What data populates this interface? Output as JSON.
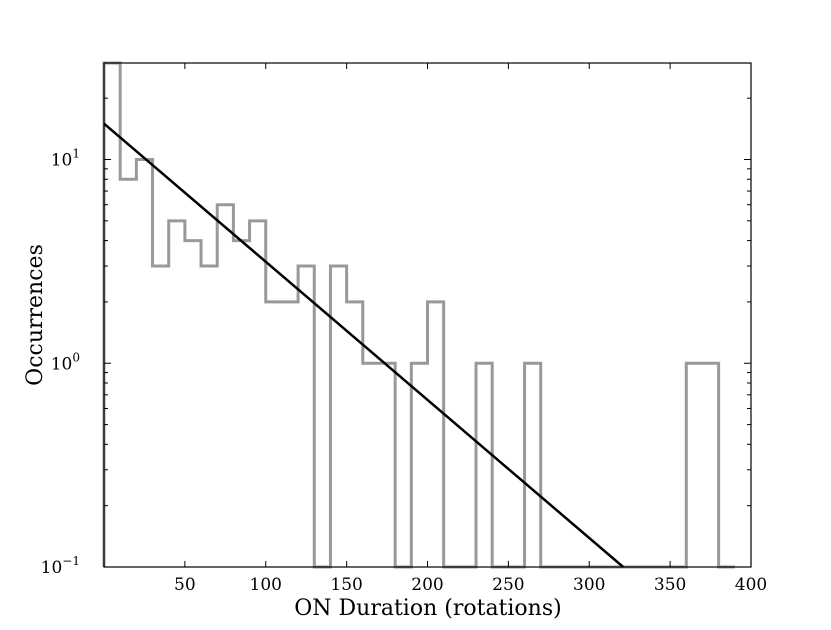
{
  "chart_data": {
    "type": "histogram",
    "xlabel": "ON Duration (rotations)",
    "ylabel": "Occurrences",
    "xlim": [
      0,
      400
    ],
    "ylim": [
      0.1,
      30
    ],
    "yscale": "log",
    "grid": false,
    "legend": "none",
    "x_ticks": [
      50,
      100,
      150,
      200,
      250,
      300,
      350,
      400
    ],
    "y_ticks": [
      {
        "value": 0.1,
        "base": "10",
        "exp": "−1"
      },
      {
        "value": 1,
        "base": "10",
        "exp": "0"
      },
      {
        "value": 10,
        "base": "10",
        "exp": "1"
      }
    ],
    "series": [
      {
        "type": "step-histogram",
        "color": "#999999",
        "bins": [
          {
            "x0": 0,
            "x1": 10,
            "count": 30
          },
          {
            "x0": 10,
            "x1": 20,
            "count": 8
          },
          {
            "x0": 20,
            "x1": 30,
            "count": 10
          },
          {
            "x0": 30,
            "x1": 40,
            "count": 3
          },
          {
            "x0": 40,
            "x1": 50,
            "count": 5
          },
          {
            "x0": 50,
            "x1": 60,
            "count": 4
          },
          {
            "x0": 60,
            "x1": 70,
            "count": 3
          },
          {
            "x0": 70,
            "x1": 80,
            "count": 6
          },
          {
            "x0": 80,
            "x1": 90,
            "count": 4
          },
          {
            "x0": 90,
            "x1": 100,
            "count": 5
          },
          {
            "x0": 100,
            "x1": 110,
            "count": 2
          },
          {
            "x0": 110,
            "x1": 120,
            "count": 2
          },
          {
            "x0": 120,
            "x1": 130,
            "count": 3
          },
          {
            "x0": 130,
            "x1": 140,
            "count": 0
          },
          {
            "x0": 140,
            "x1": 150,
            "count": 3
          },
          {
            "x0": 150,
            "x1": 160,
            "count": 2
          },
          {
            "x0": 160,
            "x1": 170,
            "count": 1
          },
          {
            "x0": 170,
            "x1": 180,
            "count": 1
          },
          {
            "x0": 180,
            "x1": 190,
            "count": 0
          },
          {
            "x0": 190,
            "x1": 200,
            "count": 1
          },
          {
            "x0": 200,
            "x1": 210,
            "count": 2
          },
          {
            "x0": 210,
            "x1": 220,
            "count": 0
          },
          {
            "x0": 220,
            "x1": 230,
            "count": 0
          },
          {
            "x0": 230,
            "x1": 240,
            "count": 1
          },
          {
            "x0": 240,
            "x1": 250,
            "count": 0
          },
          {
            "x0": 250,
            "x1": 260,
            "count": 0
          },
          {
            "x0": 260,
            "x1": 270,
            "count": 1
          },
          {
            "x0": 270,
            "x1": 280,
            "count": 0
          },
          {
            "x0": 280,
            "x1": 290,
            "count": 0
          },
          {
            "x0": 290,
            "x1": 300,
            "count": 0
          },
          {
            "x0": 300,
            "x1": 310,
            "count": 0
          },
          {
            "x0": 310,
            "x1": 320,
            "count": 0
          },
          {
            "x0": 320,
            "x1": 330,
            "count": 0
          },
          {
            "x0": 330,
            "x1": 340,
            "count": 0
          },
          {
            "x0": 340,
            "x1": 350,
            "count": 0
          },
          {
            "x0": 350,
            "x1": 360,
            "count": 0
          },
          {
            "x0": 360,
            "x1": 370,
            "count": 1
          },
          {
            "x0": 370,
            "x1": 380,
            "count": 1
          },
          {
            "x0": 380,
            "x1": 390,
            "count": 0
          }
        ]
      },
      {
        "type": "line",
        "color": "#000000",
        "x": [
          0,
          321
        ],
        "y": [
          15,
          0.1
        ]
      }
    ]
  }
}
